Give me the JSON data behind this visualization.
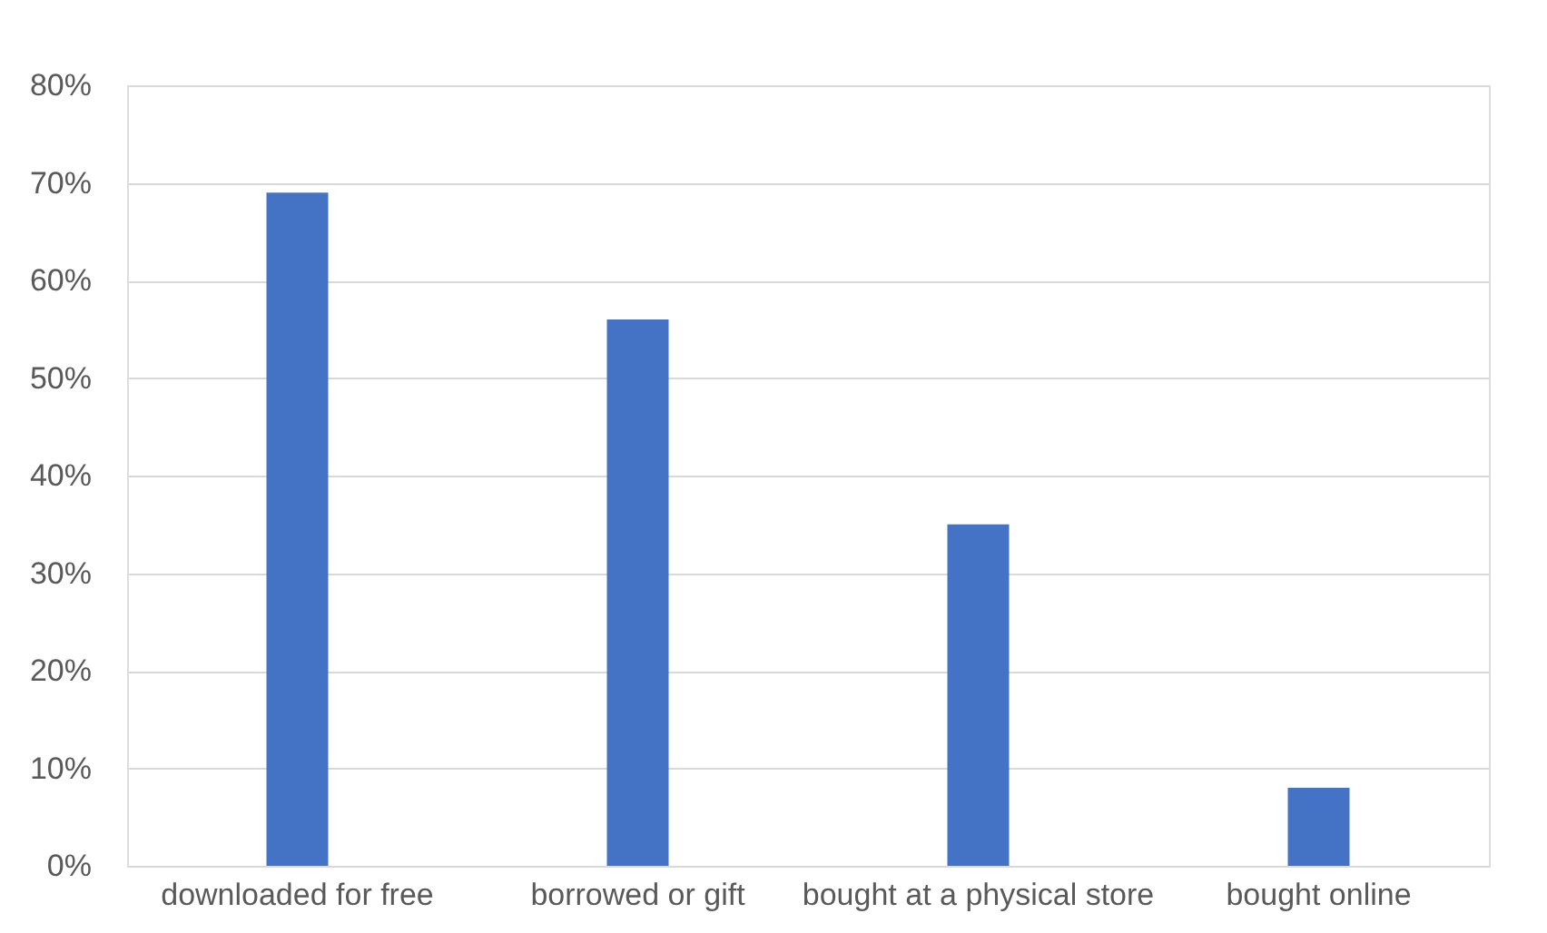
{
  "chart_data": {
    "type": "bar",
    "categories": [
      "downloaded for free",
      "borrowed or gift",
      "bought at a physical store",
      "bought online"
    ],
    "values": [
      69,
      56,
      35,
      8
    ],
    "color": "#4472c4",
    "ylim": [
      0,
      80
    ],
    "yticks": [
      {
        "value": 0,
        "label": "0%"
      },
      {
        "value": 10,
        "label": "10%"
      },
      {
        "value": 20,
        "label": "20%"
      },
      {
        "value": 30,
        "label": "30%"
      },
      {
        "value": 40,
        "label": "40%"
      },
      {
        "value": 50,
        "label": "50%"
      },
      {
        "value": 60,
        "label": "60%"
      },
      {
        "value": 70,
        "label": "70%"
      },
      {
        "value": 80,
        "label": "80%"
      }
    ],
    "grid": "y"
  }
}
